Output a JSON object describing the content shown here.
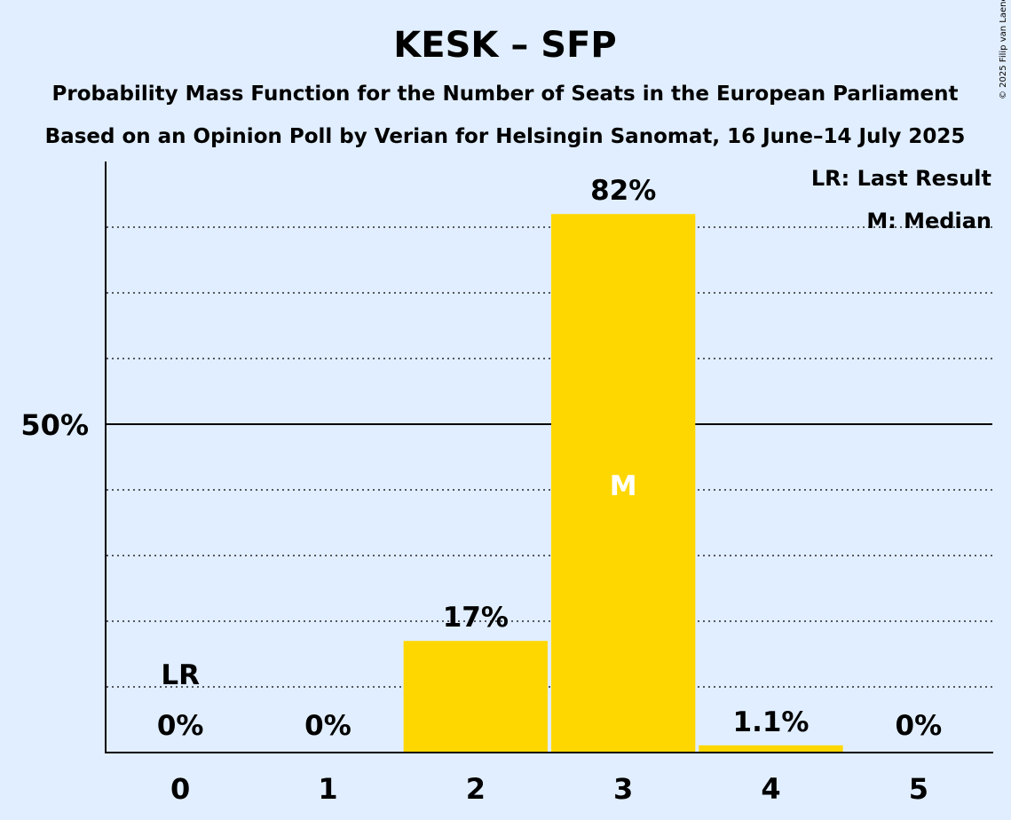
{
  "title": "KESK – SFP",
  "subtitle_1": "Probability Mass Function for the Number of Seats in the European Parliament",
  "subtitle_2": "Based on an Opinion Poll by Verian for Helsingin Sanomat, 16 June–14 July 2025",
  "copyright": "© 2025 Filip van Laenen",
  "legend": {
    "last_result": "LR: Last Result",
    "median": "M: Median"
  },
  "chart_data": {
    "type": "bar",
    "categories": [
      "0",
      "1",
      "2",
      "3",
      "4",
      "5"
    ],
    "values": [
      0,
      0,
      17,
      82,
      1.1,
      0
    ],
    "value_labels": [
      "0%",
      "0%",
      "17%",
      "82%",
      "1.1%",
      "0%"
    ],
    "ylim": [
      0,
      90
    ],
    "y_tick_label": "50%",
    "y_tick_value": 50,
    "gridlines_dotted": [
      10,
      20,
      30,
      40,
      60,
      70,
      80
    ],
    "last_result_category": "0",
    "last_result_label": "LR",
    "median_category": "3",
    "median_label": "M",
    "bar_color": "#ffd700"
  }
}
